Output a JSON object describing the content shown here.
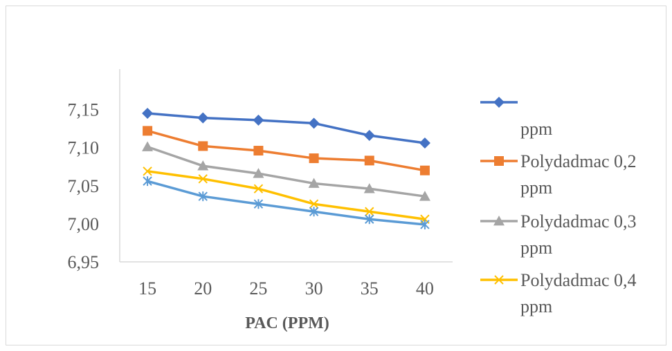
{
  "chart_data": {
    "type": "line",
    "title": "",
    "xlabel": "PAC (PPM)",
    "ylabel": "",
    "categories": [
      "15",
      "20",
      "25",
      "30",
      "35",
      "40"
    ],
    "y_ticks": [
      "7,15",
      "7,10",
      "7,05",
      "7,00",
      "6,95"
    ],
    "ylim": [
      6.95,
      7.18
    ],
    "grid": false,
    "legend_position": "right",
    "series": [
      {
        "name": "",
        "legend_label": [
          "",
          "ppm"
        ],
        "color": "#4472C4",
        "marker": "diamond",
        "values": [
          7.145,
          7.139,
          7.136,
          7.132,
          7.116,
          7.106
        ]
      },
      {
        "name": "Polydadmac 0,2 ppm",
        "legend_label": [
          "Polydadmac 0,2",
          "ppm"
        ],
        "color": "#ED7D31",
        "marker": "square",
        "values": [
          7.122,
          7.102,
          7.096,
          7.086,
          7.083,
          7.07
        ]
      },
      {
        "name": "Polydadmac 0,3 ppm",
        "legend_label": [
          "Polydadmac 0,3",
          "ppm"
        ],
        "color": "#A5A5A5",
        "marker": "triangle",
        "values": [
          7.101,
          7.076,
          7.066,
          7.053,
          7.046,
          7.036
        ]
      },
      {
        "name": "Polydadmac 0,4 ppm",
        "legend_label": [
          "Polydadmac 0,4",
          "ppm"
        ],
        "color": "#FFC000",
        "marker": "x",
        "values": [
          7.069,
          7.059,
          7.046,
          7.026,
          7.016,
          7.006
        ]
      },
      {
        "name": "",
        "color": "#5B9BD5",
        "marker": "star",
        "values": [
          7.056,
          7.036,
          7.026,
          7.016,
          7.006,
          6.999
        ]
      }
    ]
  }
}
